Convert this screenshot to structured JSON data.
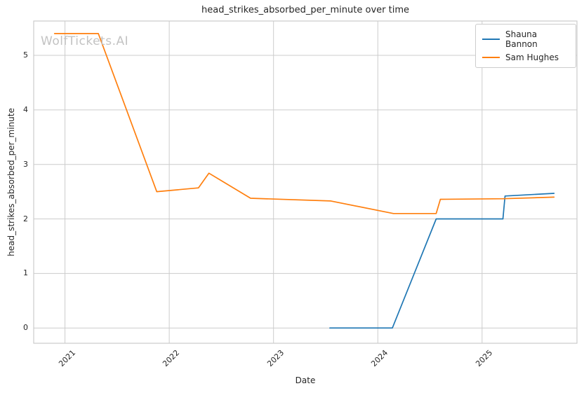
{
  "chart_data": {
    "type": "line",
    "title": "head_strikes_absorbed_per_minute over time",
    "xlabel": "Date",
    "ylabel": "head_strikes_absorbed_per_minute",
    "watermark": "WolfTickets.AI",
    "xlim": [
      2020.7,
      2025.91
    ],
    "ylim": [
      -0.28,
      5.63
    ],
    "grid": true,
    "legend_position": "upper-right",
    "colors": {
      "background": "#ffffff",
      "grid": "#cccccc",
      "spine": "#cccccc",
      "text": "#262626",
      "watermark": "#c3c3c3"
    },
    "x_ticks": [
      {
        "label": "2021",
        "value": 2021
      },
      {
        "label": "2022",
        "value": 2022
      },
      {
        "label": "2023",
        "value": 2023
      },
      {
        "label": "2024",
        "value": 2024
      },
      {
        "label": "2025",
        "value": 2025
      }
    ],
    "y_ticks": [
      {
        "label": "0",
        "value": 0
      },
      {
        "label": "1",
        "value": 1
      },
      {
        "label": "2",
        "value": 2
      },
      {
        "label": "3",
        "value": 3
      },
      {
        "label": "4",
        "value": 4
      },
      {
        "label": "5",
        "value": 5
      }
    ],
    "series": [
      {
        "name": "Shauna Bannon",
        "color": "#1f77b4",
        "points": [
          [
            2023.54,
            0.0
          ],
          [
            2024.14,
            0.0
          ],
          [
            2024.56,
            2.0
          ],
          [
            2025.2,
            2.0
          ],
          [
            2025.22,
            2.42
          ],
          [
            2025.69,
            2.47
          ]
        ]
      },
      {
        "name": "Sam Hughes",
        "color": "#ff7f0e",
        "points": [
          [
            2020.9,
            5.4
          ],
          [
            2021.32,
            5.4
          ],
          [
            2021.88,
            2.5
          ],
          [
            2022.28,
            2.57
          ],
          [
            2022.38,
            2.84
          ],
          [
            2022.78,
            2.38
          ],
          [
            2023.55,
            2.33
          ],
          [
            2024.15,
            2.1
          ],
          [
            2024.56,
            2.1
          ],
          [
            2024.6,
            2.36
          ],
          [
            2025.2,
            2.37
          ],
          [
            2025.69,
            2.4
          ]
        ]
      }
    ]
  }
}
